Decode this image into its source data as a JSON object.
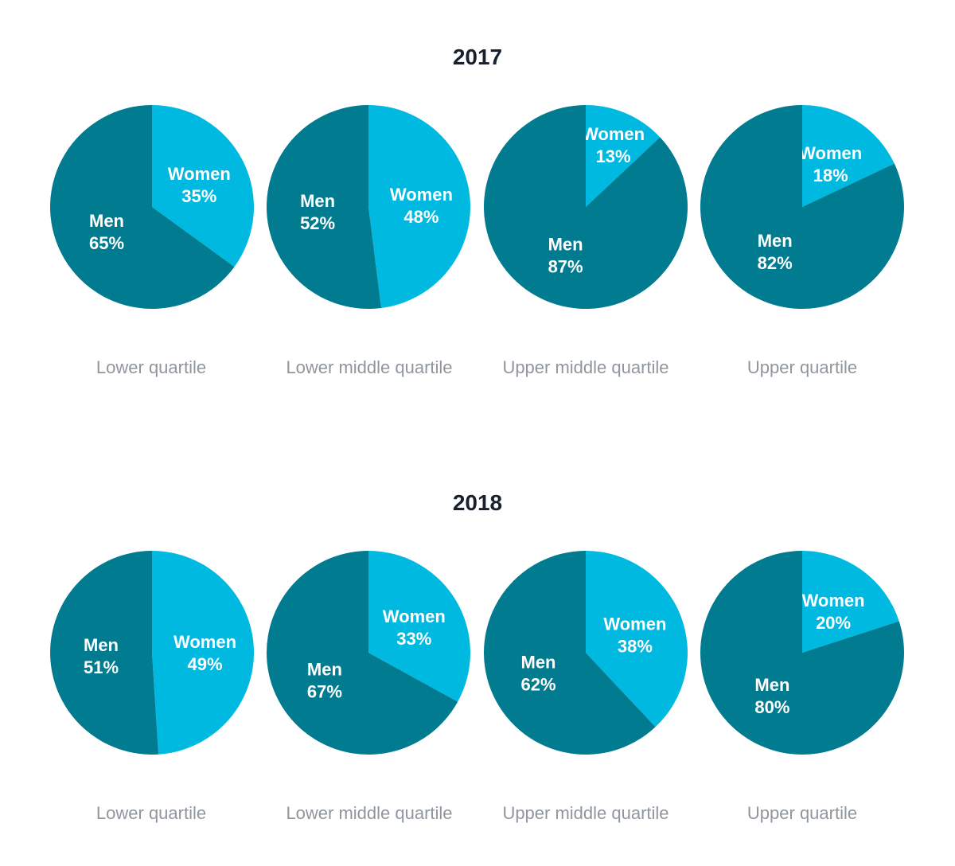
{
  "chart_data": [
    {
      "type": "pie",
      "title": "2017",
      "categories": [
        "Lower quartile",
        "Lower middle quartile",
        "Upper middle quartile",
        "Upper quartile"
      ],
      "series": [
        {
          "name": "Women",
          "values": [
            35,
            48,
            13,
            18
          ]
        },
        {
          "name": "Men",
          "values": [
            65,
            52,
            87,
            82
          ]
        }
      ],
      "value_suffix": "%",
      "colors": {
        "Women": "#00b9e1",
        "Men": "#007b90"
      },
      "legend": "none"
    },
    {
      "type": "pie",
      "title": "2018",
      "categories": [
        "Lower quartile",
        "Lower middle quartile",
        "Upper middle quartile",
        "Upper quartile"
      ],
      "series": [
        {
          "name": "Women",
          "values": [
            49,
            33,
            38,
            20
          ]
        },
        {
          "name": "Men",
          "values": [
            51,
            67,
            62,
            80
          ]
        }
      ],
      "value_suffix": "%",
      "colors": {
        "Women": "#00b9e1",
        "Men": "#007b90"
      },
      "legend": "none"
    }
  ]
}
